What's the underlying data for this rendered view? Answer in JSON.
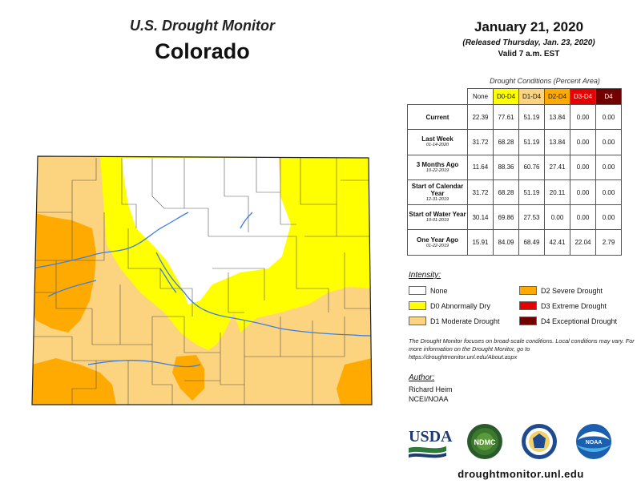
{
  "header": {
    "title": "U.S. Drought Monitor",
    "state": "Colorado",
    "date": "January 21, 2020",
    "released": "(Released Thursday, Jan. 23, 2020)",
    "valid": "Valid 7 a.m. EST"
  },
  "table": {
    "caption": "Drought Conditions (Percent Area)",
    "columns": [
      {
        "label": "None",
        "color": "#ffffff"
      },
      {
        "label": "D0-D4",
        "color": "#ffff00"
      },
      {
        "label": "D1-D4",
        "color": "#fcd37f"
      },
      {
        "label": "D2-D4",
        "color": "#ffaa00"
      },
      {
        "label": "D3-D4",
        "color": "#e60000"
      },
      {
        "label": "D4",
        "color": "#730000"
      }
    ],
    "rows": [
      {
        "label": "Current",
        "sub": "",
        "values": [
          "22.39",
          "77.61",
          "51.19",
          "13.84",
          "0.00",
          "0.00"
        ]
      },
      {
        "label": "Last Week",
        "sub": "01-14-2020",
        "values": [
          "31.72",
          "68.28",
          "51.19",
          "13.84",
          "0.00",
          "0.00"
        ]
      },
      {
        "label": "3 Months Ago",
        "sub": "10-22-2019",
        "values": [
          "11.64",
          "88.36",
          "60.76",
          "27.41",
          "0.00",
          "0.00"
        ]
      },
      {
        "label": "Start of Calendar Year",
        "sub": "12-31-2019",
        "values": [
          "31.72",
          "68.28",
          "51.19",
          "20.11",
          "0.00",
          "0.00"
        ]
      },
      {
        "label": "Start of Water Year",
        "sub": "10-01-2019",
        "values": [
          "30.14",
          "69.86",
          "27.53",
          "0.00",
          "0.00",
          "0.00"
        ]
      },
      {
        "label": "One Year Ago",
        "sub": "01-22-2019",
        "values": [
          "15.91",
          "84.09",
          "68.49",
          "42.41",
          "22.04",
          "2.79"
        ]
      }
    ]
  },
  "legend": {
    "title": "Intensity:",
    "items": [
      {
        "label": "None",
        "color": "#ffffff"
      },
      {
        "label": "D0 Abnormally Dry",
        "color": "#ffff00"
      },
      {
        "label": "D1 Moderate Drought",
        "color": "#fcd37f"
      },
      {
        "label": "D2 Severe Drought",
        "color": "#ffaa00"
      },
      {
        "label": "D3 Extreme Drought",
        "color": "#e60000"
      },
      {
        "label": "D4 Exceptional Drought",
        "color": "#730000"
      }
    ]
  },
  "note": "The Drought Monitor focuses on broad-scale conditions. Local conditions may vary. For more information on the Drought Monitor, go to https://droughtmonitor.unl.edu/About.aspx",
  "author": {
    "title": "Author:",
    "name": "Richard Heim",
    "org": "NCEI/NOAA"
  },
  "logos": {
    "usda": "USDA",
    "ndmc": "NDMC",
    "noaa": "NOAA"
  },
  "footer": {
    "url": "droughtmonitor.unl.edu"
  }
}
